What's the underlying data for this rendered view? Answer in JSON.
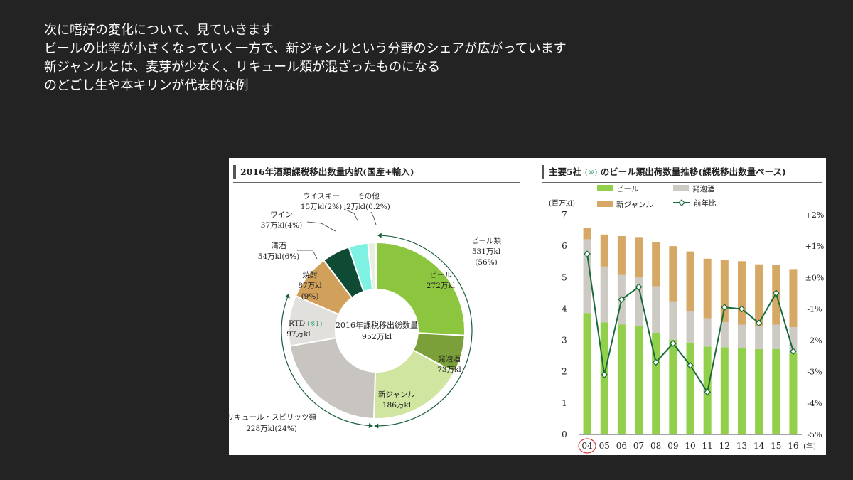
{
  "slide": {
    "lines": [
      "次に嗜好の変化について、見ていきます",
      "ビールの比率が小さくなっていく一方で、新ジャンルという分野のシェアが広がっています",
      "新ジャンルとは、麦芽が少なく、リキュール類が混ざったものになる",
      "のどごし生や本キリンが代表的な例"
    ]
  },
  "colors": {
    "beer": "#8cc63f",
    "happoshu": "#7ba03a",
    "new_genre": "#cfe5a0",
    "liqueur": "#c8c5c0",
    "rtd": "#e2e0dc",
    "shochu": "#d1a15c",
    "seishu": "#0e4a34",
    "wine": "#7ef1e2",
    "whisky": "#e9efe0",
    "other": "#b9c8a8",
    "bar_beer": "#92cf4a",
    "bar_happoshu": "#cdcac4",
    "bar_newgenre": "#d6a865",
    "line": "#1a6b3c"
  },
  "chart_data": [
    {
      "type": "pie",
      "title": "2016年酒類課税移出数量内訳(国産+輸入)",
      "center_label": [
        "2016年課税移出総数量",
        "952万kl"
      ],
      "slices": [
        {
          "name": "ビール",
          "value": 272,
          "label": "272万kl",
          "color_key": "beer"
        },
        {
          "name": "発泡酒",
          "value": 73,
          "label": "73万kl",
          "color_key": "happoshu"
        },
        {
          "name": "新ジャンル",
          "value": 186,
          "label": "186万kl",
          "color_key": "new_genre"
        },
        {
          "name": "リキュール・スピリッツ類",
          "value": 228,
          "label": "228万kl(24%)",
          "color_key": "liqueur"
        },
        {
          "name": "RTD",
          "note": "(※1)",
          "value": 97,
          "label": "97万kl",
          "color_key": "rtd"
        },
        {
          "name": "焼酎",
          "value": 87,
          "label": "87万kl",
          "pct": "(9%)",
          "color_key": "shochu"
        },
        {
          "name": "清酒",
          "value": 54,
          "label": "54万kl(6%)",
          "color_key": "seishu"
        },
        {
          "name": "ワイン",
          "value": 37,
          "label": "37万kl(4%)",
          "color_key": "wine"
        },
        {
          "name": "ウイスキー",
          "value": 15,
          "label": "15万kl(2%)",
          "color_key": "whisky"
        },
        {
          "name": "その他",
          "value": 2,
          "label": "2万kl(0.2%)",
          "color_key": "other"
        }
      ],
      "group_label": {
        "name": "ビール類",
        "value": "531万kl",
        "pct": "(56%)"
      }
    },
    {
      "type": "bar+line",
      "title": "主要5社",
      "title_note": "(※)",
      "title_rest": "のビール類出荷数量推移(課税移出数量ベース)",
      "categories": [
        "04",
        "05",
        "06",
        "07",
        "08",
        "09",
        "10",
        "11",
        "12",
        "13",
        "14",
        "15",
        "16"
      ],
      "highlight_category": "04",
      "x_unit": "(年)",
      "y_unit": "(百万kl)",
      "ylim": [
        0,
        7
      ],
      "yticks": [
        "0",
        "1",
        "2",
        "3",
        "4",
        "5",
        "6",
        "7"
      ],
      "y2lim": [
        -5,
        2
      ],
      "y2ticks": [
        "+2%",
        "+1%",
        "±0%",
        "-1%",
        "-2%",
        "-3%",
        "-4%",
        "-5%"
      ],
      "series": [
        {
          "name": "ビール",
          "color_key": "bar_beer",
          "values": [
            3.87,
            3.57,
            3.5,
            3.45,
            3.24,
            3.02,
            2.93,
            2.8,
            2.78,
            2.75,
            2.72,
            2.72,
            2.6
          ]
        },
        {
          "name": "発泡酒",
          "color_key": "bar_happoshu",
          "values": [
            2.35,
            1.78,
            1.58,
            1.55,
            1.48,
            1.22,
            1.0,
            0.9,
            0.8,
            0.75,
            0.72,
            0.78,
            0.82
          ]
        },
        {
          "name": "新ジャンル",
          "color_key": "bar_newgenre",
          "values": [
            0.35,
            1.02,
            1.24,
            1.29,
            1.42,
            1.76,
            1.9,
            1.9,
            1.98,
            2.02,
            1.98,
            1.9,
            1.85
          ]
        }
      ],
      "line_series": {
        "name": "前年比",
        "color_key": "line",
        "values": [
          0.75,
          -3.1,
          -0.7,
          -0.3,
          -2.7,
          -2.1,
          -2.8,
          -3.65,
          -0.95,
          -1.0,
          -1.45,
          -0.5,
          -2.35
        ]
      }
    }
  ]
}
